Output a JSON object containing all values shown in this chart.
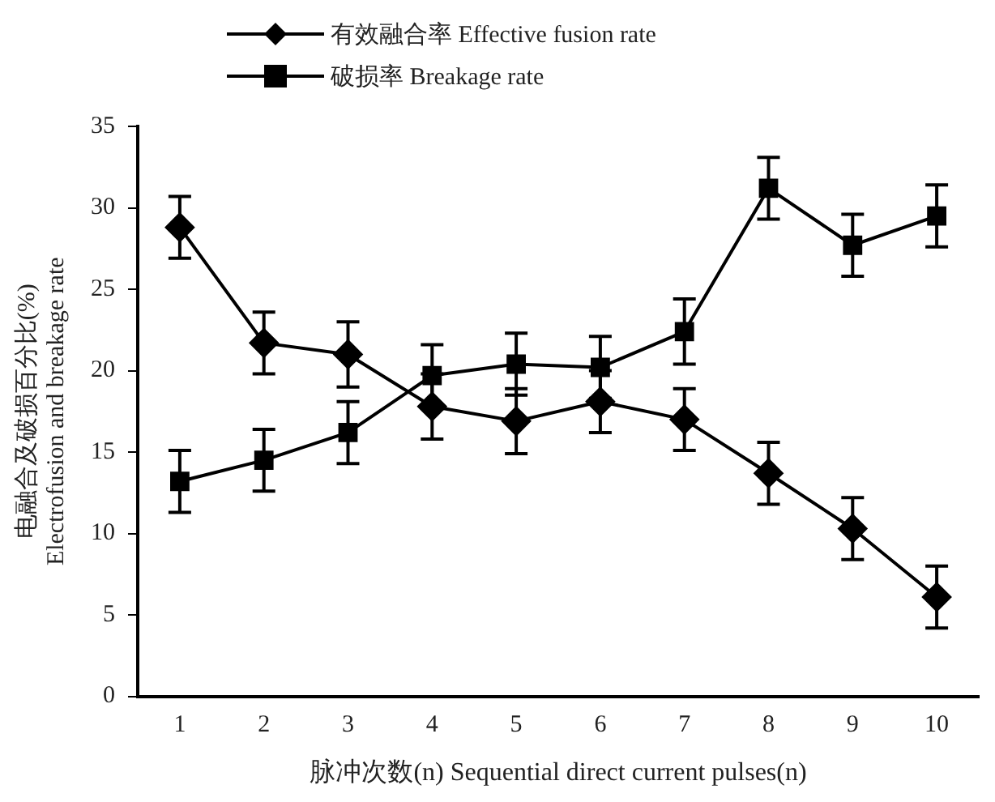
{
  "chart_data": {
    "type": "line",
    "xlabel": "脉冲次数(n) Sequential direct current pulses(n)",
    "ylabel": "电融合及破损百分比(%)\nElectrofusion and breakage rate",
    "categories": [
      "1",
      "2",
      "3",
      "4",
      "5",
      "6",
      "7",
      "8",
      "9",
      "10"
    ],
    "series": [
      {
        "name": "有效融合率 Effective fusion rate",
        "color": "#000000",
        "marker": "diamond",
        "values": [
          28.8,
          21.7,
          21.0,
          17.8,
          16.9,
          18.1,
          17.0,
          13.7,
          10.3,
          6.1
        ],
        "errors": [
          1.9,
          1.9,
          2.0,
          2.0,
          2.0,
          1.9,
          1.9,
          1.9,
          1.9,
          1.9
        ]
      },
      {
        "name": "破损率 Breakage rate",
        "color": "#000000",
        "marker": "square",
        "values": [
          13.2,
          14.5,
          16.2,
          19.7,
          20.4,
          20.2,
          22.4,
          31.2,
          27.7,
          29.5
        ],
        "errors": [
          1.9,
          1.9,
          1.9,
          1.9,
          1.9,
          1.9,
          2.0,
          1.9,
          1.9,
          1.9
        ]
      }
    ],
    "ylim": [
      0,
      35
    ],
    "yticks": [
      0,
      5,
      10,
      15,
      20,
      25,
      30,
      35
    ],
    "grid": false,
    "legend": "top",
    "line_style": "solid"
  }
}
